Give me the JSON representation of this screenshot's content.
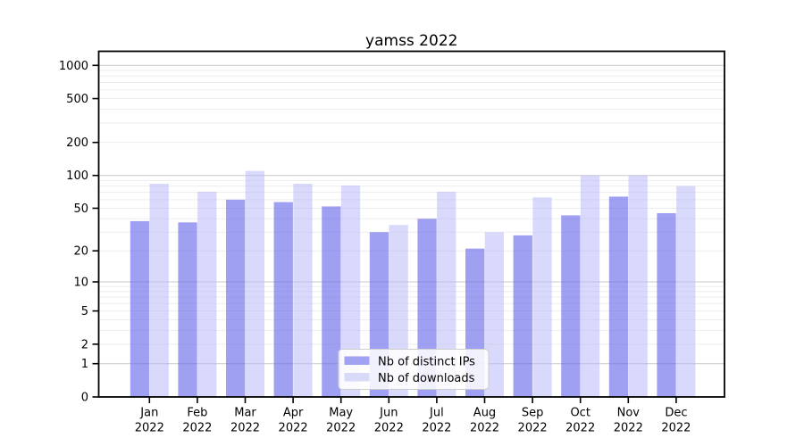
{
  "title": "yamss 2022",
  "y_axis": {
    "tick_labels": [
      "1000",
      "500",
      "200",
      "100",
      "50",
      "20",
      "10",
      "5",
      "2",
      "1",
      "0"
    ],
    "tick_values": [
      1000,
      500,
      200,
      100,
      50,
      20,
      10,
      5,
      2,
      1,
      0
    ]
  },
  "x_axis": {
    "months": [
      "Jan",
      "Feb",
      "Mar",
      "Apr",
      "May",
      "Jun",
      "Jul",
      "Aug",
      "Sep",
      "Oct",
      "Nov",
      "Dec"
    ],
    "year": "2022"
  },
  "legend": {
    "items": [
      "Nb of distinct IPs",
      "Nb of downloads"
    ]
  },
  "colors": {
    "bar_dark": "#a2a2f2",
    "bar_light": "#d9d9f8",
    "grid_major": "#c9c9c9",
    "grid_minor": "#ededed",
    "axis": "#000000",
    "legend_border": "#cccccc"
  },
  "chart_data": {
    "type": "bar",
    "title": "yamss 2022",
    "xlabel": "",
    "ylabel": "",
    "yscale": "log1p",
    "ylim": [
      0,
      1340
    ],
    "grid": true,
    "legend_position": "lower center",
    "categories": [
      "Jan 2022",
      "Feb 2022",
      "Mar 2022",
      "Apr 2022",
      "May 2022",
      "Jun 2022",
      "Jul 2022",
      "Aug 2022",
      "Sep 2022",
      "Oct 2022",
      "Nov 2022",
      "Dec 2022"
    ],
    "series": [
      {
        "name": "Nb of distinct IPs",
        "values": [
          38,
          37,
          60,
          57,
          52,
          30,
          40,
          21,
          28,
          43,
          64,
          45
        ],
        "bar_color": "rgba(102,102,235,0.62)",
        "swatch_color": "#a2a2f2"
      },
      {
        "name": "Nb of downloads",
        "values": [
          84,
          71,
          110,
          84,
          81,
          35,
          71,
          30,
          63,
          100,
          100,
          80
        ],
        "bar_color": "rgba(180,180,248,0.5)",
        "swatch_color": "#d9d9f8"
      }
    ]
  }
}
